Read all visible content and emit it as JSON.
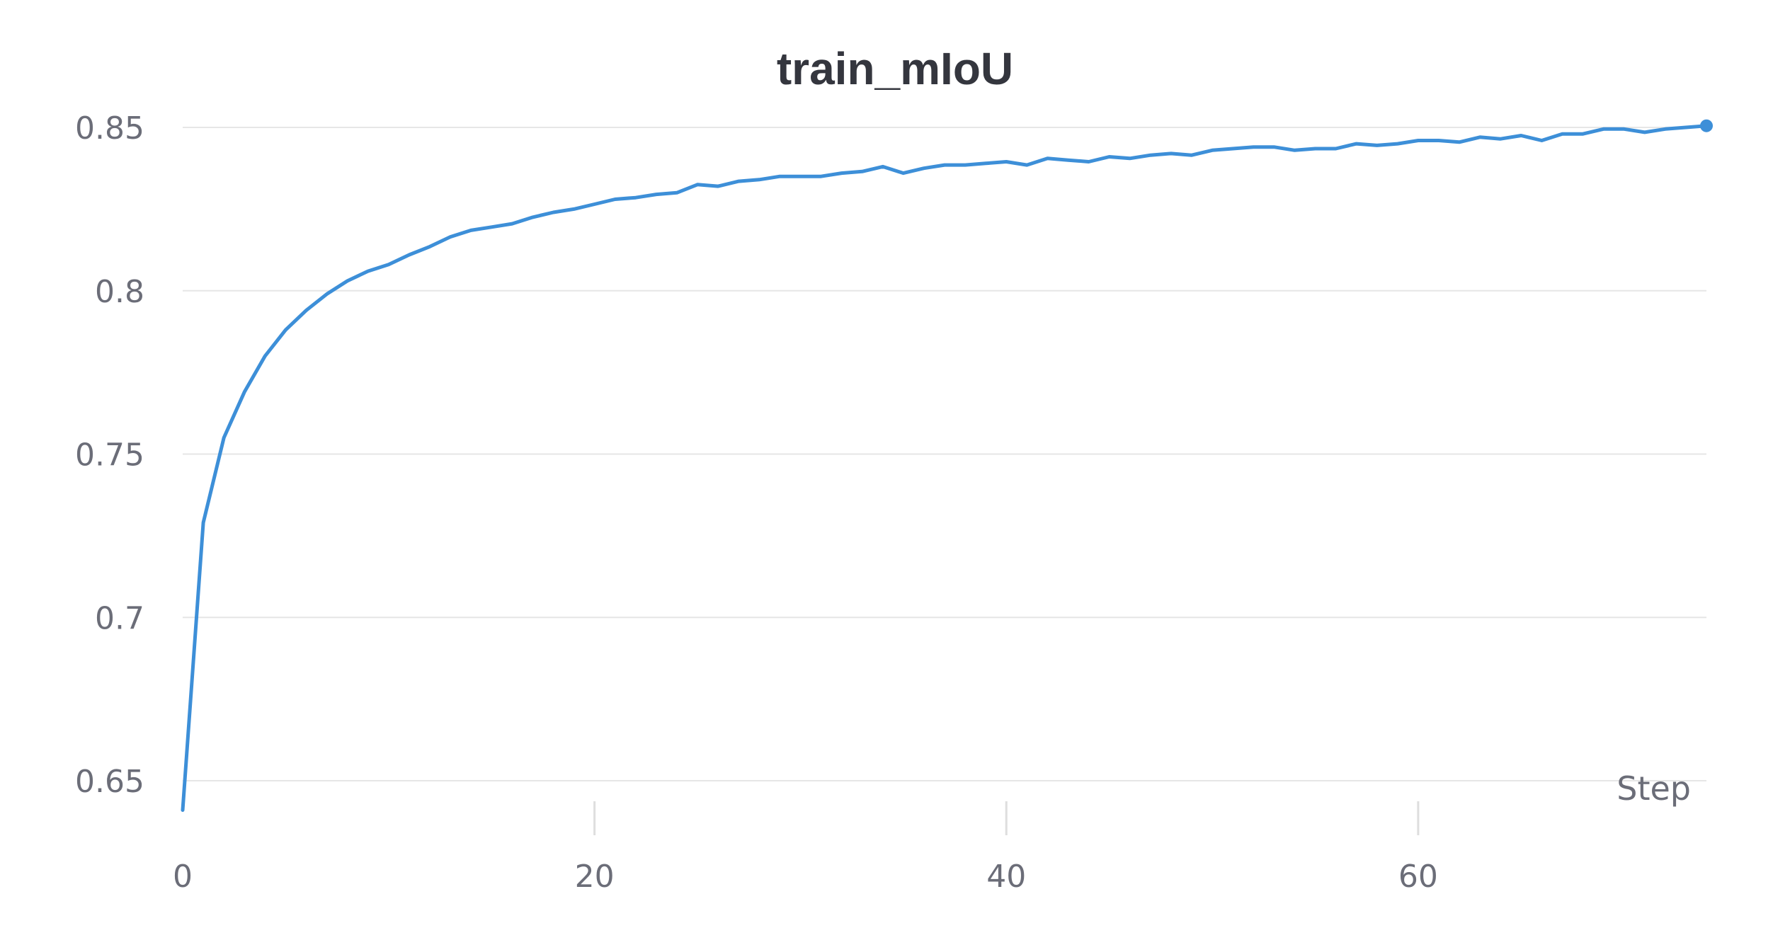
{
  "chart_data": {
    "type": "line",
    "title": "train_mIoU",
    "xlabel": "Step",
    "ylabel": "",
    "xlim": [
      0,
      74
    ],
    "ylim": [
      0.64,
      0.851
    ],
    "y_ticks": [
      0.65,
      0.7,
      0.75,
      0.8,
      0.85
    ],
    "y_tick_labels": [
      "0.65",
      "0.7",
      "0.75",
      "0.8",
      "0.85"
    ],
    "x_ticks": [
      0,
      20,
      40,
      60
    ],
    "x_tick_labels": [
      "0",
      "20",
      "40",
      "60"
    ],
    "grid": true,
    "line_color": "#3d8fd8",
    "series": [
      {
        "x": [
          0,
          1,
          2,
          3,
          4,
          5,
          6,
          7,
          8,
          9,
          10,
          11,
          12,
          13,
          14,
          15,
          16,
          17,
          18,
          19,
          20,
          21,
          22,
          23,
          24,
          25,
          26,
          27,
          28,
          29,
          30,
          31,
          32,
          33,
          34,
          35,
          36,
          37,
          38,
          39,
          40,
          41,
          42,
          43,
          44,
          45,
          46,
          47,
          48,
          49,
          50,
          51,
          52,
          53,
          54,
          55,
          56,
          57,
          58,
          59,
          60,
          61,
          62,
          63,
          64,
          65,
          66,
          67,
          68,
          69,
          70,
          71,
          72,
          73,
          74
        ],
        "y": [
          0.641,
          0.729,
          0.755,
          0.769,
          0.78,
          0.788,
          0.794,
          0.799,
          0.803,
          0.806,
          0.808,
          0.811,
          0.8135,
          0.8165,
          0.8185,
          0.8195,
          0.8205,
          0.8225,
          0.824,
          0.825,
          0.8265,
          0.828,
          0.8285,
          0.8295,
          0.83,
          0.8325,
          0.832,
          0.8335,
          0.834,
          0.835,
          0.835,
          0.835,
          0.836,
          0.8365,
          0.838,
          0.836,
          0.8375,
          0.8385,
          0.8385,
          0.839,
          0.8395,
          0.8385,
          0.8405,
          0.84,
          0.8395,
          0.841,
          0.8405,
          0.8415,
          0.842,
          0.8415,
          0.843,
          0.8435,
          0.844,
          0.844,
          0.843,
          0.8435,
          0.8435,
          0.845,
          0.8445,
          0.845,
          0.846,
          0.846,
          0.8455,
          0.847,
          0.8465,
          0.8475,
          0.846,
          0.848,
          0.848,
          0.8495,
          0.8495,
          0.8485,
          0.8495,
          0.85,
          0.8505
        ]
      }
    ]
  }
}
